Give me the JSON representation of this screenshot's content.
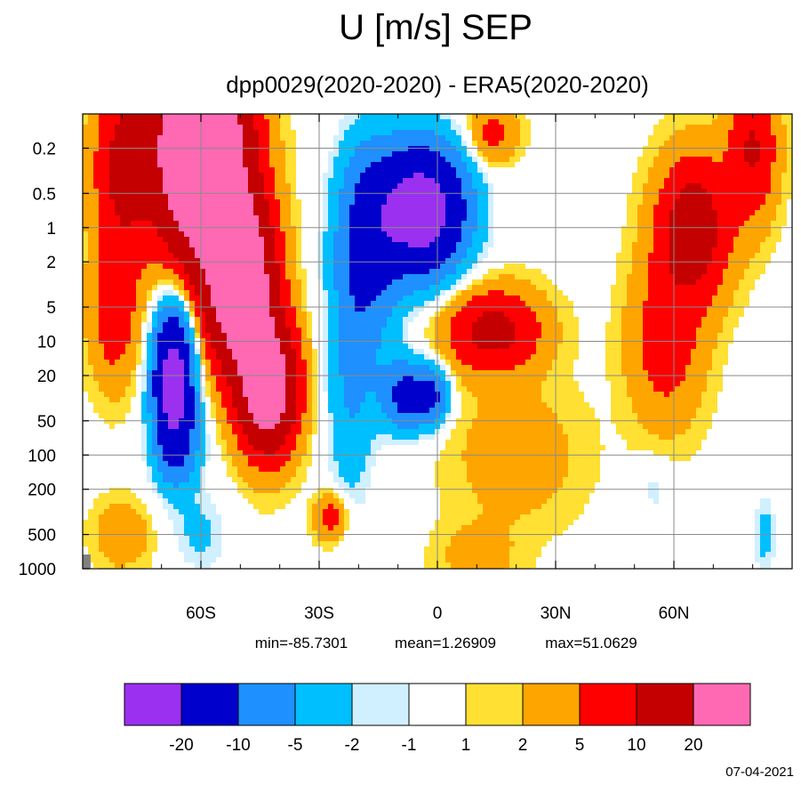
{
  "chart_data": {
    "type": "heatmap",
    "title": "U [m/s] SEP",
    "subtitle": "dpp0029(2020-2020) - ERA5(2020-2020)",
    "xlabel": "",
    "ylabel": "",
    "x_ticks": [
      {
        "value": -60,
        "label": "60S"
      },
      {
        "value": -30,
        "label": "30S"
      },
      {
        "value": 0,
        "label": "0"
      },
      {
        "value": 30,
        "label": "30N"
      },
      {
        "value": 60,
        "label": "60N"
      }
    ],
    "y_ticks": [
      {
        "value": 0.2,
        "label": "0.2"
      },
      {
        "value": 0.5,
        "label": "0.5"
      },
      {
        "value": 1,
        "label": "1"
      },
      {
        "value": 2,
        "label": "2"
      },
      {
        "value": 5,
        "label": "5"
      },
      {
        "value": 10,
        "label": "10"
      },
      {
        "value": 20,
        "label": "20"
      },
      {
        "value": 50,
        "label": "50"
      },
      {
        "value": 100,
        "label": "100"
      },
      {
        "value": 200,
        "label": "200"
      },
      {
        "value": 500,
        "label": "500"
      },
      {
        "value": 1000,
        "label": "1000"
      }
    ],
    "xlim": [
      -90,
      90
    ],
    "ylim": [
      1000,
      0.1
    ],
    "y_scale": "log",
    "grid": true,
    "stats": {
      "min": "min=-85.7301",
      "mean": "mean=1.26909",
      "max": "max=51.0629"
    },
    "levels": [
      -20,
      -10,
      -5,
      -2,
      -1,
      1,
      2,
      5,
      10,
      20
    ],
    "level_labels": [
      "-20",
      "-10",
      "-5",
      "-2",
      "-1",
      "1",
      "2",
      "5",
      "10",
      "20"
    ],
    "colors": [
      "#9B30F0",
      "#0000CD",
      "#1E90FF",
      "#00BFFF",
      "#D0F0FF",
      "#FFFFFF",
      "#FFE033",
      "#FFA500",
      "#FF0000",
      "#C40000",
      "#FF69B4"
    ],
    "features": [
      {
        "lat": -60,
        "p": 0.2,
        "value": 45,
        "lat_width": 11,
        "p_width_dec": 0.9
      },
      {
        "lat": -50,
        "p": 3,
        "value": 35,
        "lat_width": 8,
        "p_width_dec": 0.7
      },
      {
        "lat": -43,
        "p": 25,
        "value": 30,
        "lat_width": 7,
        "p_width_dec": 0.55
      },
      {
        "lat": -80,
        "p": 0.3,
        "value": 11,
        "lat_width": 7,
        "p_width_dec": 0.8
      },
      {
        "lat": -82,
        "p": 6,
        "value": 7,
        "lat_width": 6,
        "p_width_dec": 0.6
      },
      {
        "lat": -67,
        "p": 20,
        "value": -26,
        "lat_width": 5,
        "p_width_dec": 0.6
      },
      {
        "lat": -66,
        "p": 80,
        "value": -8,
        "lat_width": 6,
        "p_width_dec": 0.4
      },
      {
        "lat": -60,
        "p": 500,
        "value": -3,
        "lat_width": 7,
        "p_width_dec": 0.35
      },
      {
        "lat": -80,
        "p": 500,
        "value": 3.5,
        "lat_width": 7,
        "p_width_dec": 0.3
      },
      {
        "lat": -27,
        "p": 350,
        "value": 7,
        "lat_width": 4,
        "p_width_dec": 0.2
      },
      {
        "lat": -4,
        "p": 0.7,
        "value": -28,
        "lat_width": 11,
        "p_width_dec": 0.55
      },
      {
        "lat": -18,
        "p": 1.5,
        "value": -12,
        "lat_width": 8,
        "p_width_dec": 0.9
      },
      {
        "lat": -22,
        "p": 30,
        "value": -5,
        "lat_width": 6,
        "p_width_dec": 1.0
      },
      {
        "lat": -8,
        "p": 30,
        "value": -13,
        "lat_width": 6,
        "p_width_dec": 0.3
      },
      {
        "lat": -1,
        "p": 30,
        "value": -10,
        "lat_width": 4,
        "p_width_dec": 0.25
      },
      {
        "lat": 14,
        "p": 8,
        "value": 12,
        "lat_width": 12,
        "p_width_dec": 0.35
      },
      {
        "lat": 20,
        "p": 100,
        "value": 3,
        "lat_width": 16,
        "p_width_dec": 0.6
      },
      {
        "lat": 65,
        "p": 1,
        "value": 14,
        "lat_width": 9,
        "p_width_dec": 0.6
      },
      {
        "lat": 58,
        "p": 10,
        "value": 7,
        "lat_width": 9,
        "p_width_dec": 0.7
      },
      {
        "lat": 80,
        "p": 0.2,
        "value": 10,
        "lat_width": 6,
        "p_width_dec": 0.6
      },
      {
        "lat": 55,
        "p": 200,
        "value": -2,
        "lat_width": 4,
        "p_width_dec": 0.25
      },
      {
        "lat": 83,
        "p": 500,
        "value": -3.5,
        "lat_width": 3,
        "p_width_dec": 0.35
      },
      {
        "lat": 14,
        "p": 0.15,
        "value": 6,
        "lat_width": 6,
        "p_width_dec": 0.25
      },
      {
        "lat": 10,
        "p": 800,
        "value": 2.5,
        "lat_width": 10,
        "p_width_dec": 0.3
      }
    ],
    "base_value": 0.5,
    "missing_region": {
      "lat_min": -90,
      "lat_max": -88,
      "p_min": 750,
      "p_max": 1000
    }
  },
  "footer": {
    "date": "07-04-2021"
  }
}
